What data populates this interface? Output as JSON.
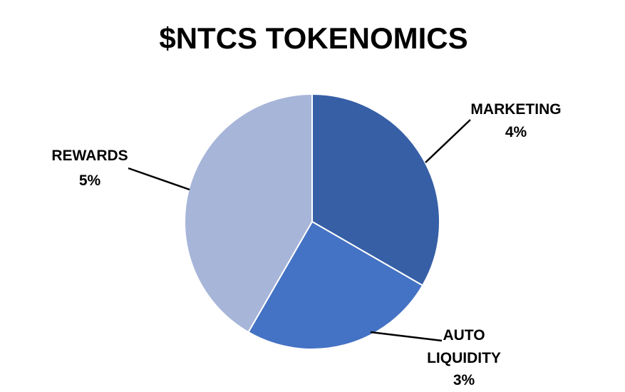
{
  "chart_data": {
    "type": "pie",
    "title": "$NTCS TOKENOMICS",
    "slices": [
      {
        "name": "MARKETING",
        "label_lines": [
          "MARKETING"
        ],
        "value": 4,
        "value_label": "4%",
        "color": "#365fa6"
      },
      {
        "name": "AUTO LIQUIDITY",
        "label_lines": [
          "AUTO",
          "LIQUIDITY"
        ],
        "value": 3,
        "value_label": "3%",
        "color": "#4472c4"
      },
      {
        "name": "REWARDS",
        "label_lines": [
          "REWARDS"
        ],
        "value": 5,
        "value_label": "5%",
        "color": "#a7b5d9"
      }
    ],
    "start_angle": "12 o'clock",
    "direction": "clockwise",
    "legend": "none",
    "data_labels": "outside with leader lines"
  }
}
